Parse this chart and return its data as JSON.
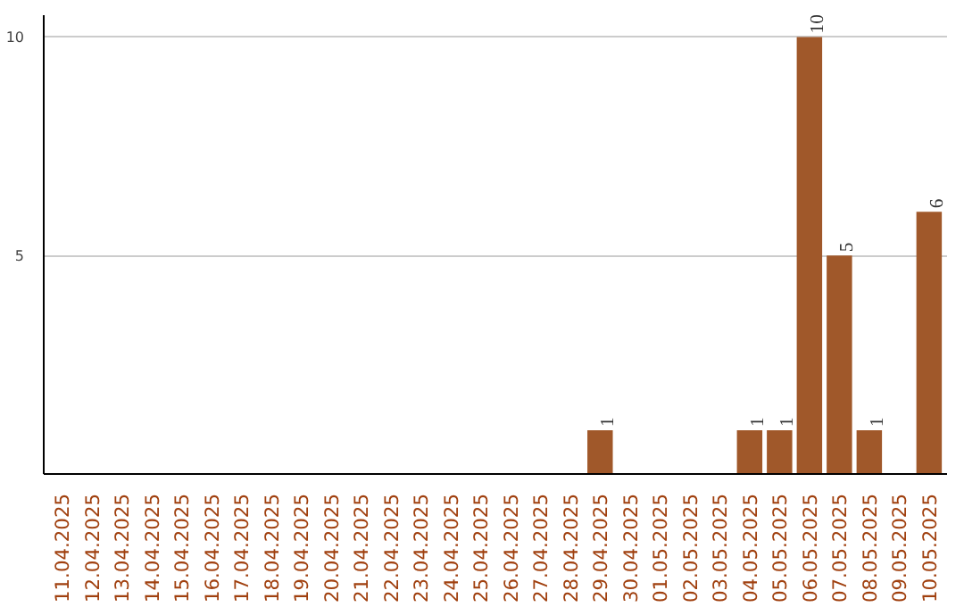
{
  "chart_data": {
    "type": "bar",
    "categories": [
      "11.04.2025",
      "12.04.2025",
      "13.04.2025",
      "14.04.2025",
      "15.04.2025",
      "16.04.2025",
      "17.04.2025",
      "18.04.2025",
      "19.04.2025",
      "20.04.2025",
      "21.04.2025",
      "22.04.2025",
      "23.04.2025",
      "24.04.2025",
      "25.04.2025",
      "26.04.2025",
      "27.04.2025",
      "28.04.2025",
      "29.04.2025",
      "30.04.2025",
      "01.05.2025",
      "02.05.2025",
      "03.05.2025",
      "04.05.2025",
      "05.05.2025",
      "06.05.2025",
      "07.05.2025",
      "08.05.2025",
      "09.05.2025",
      "10.05.2025"
    ],
    "values": [
      0,
      0,
      0,
      0,
      0,
      0,
      0,
      0,
      0,
      0,
      0,
      0,
      0,
      0,
      0,
      0,
      0,
      0,
      1,
      0,
      0,
      0,
      0,
      1,
      1,
      10,
      5,
      1,
      0,
      6
    ],
    "value_labels": [
      null,
      null,
      null,
      null,
      null,
      null,
      null,
      null,
      null,
      null,
      null,
      null,
      null,
      null,
      null,
      null,
      null,
      null,
      "1",
      null,
      null,
      null,
      null,
      "1",
      "1",
      "10",
      "5",
      "1",
      null,
      "6"
    ],
    "color": "#a0582a",
    "ylim": [
      0,
      10.5
    ],
    "yticks": [
      5,
      10
    ],
    "grid": "y"
  }
}
